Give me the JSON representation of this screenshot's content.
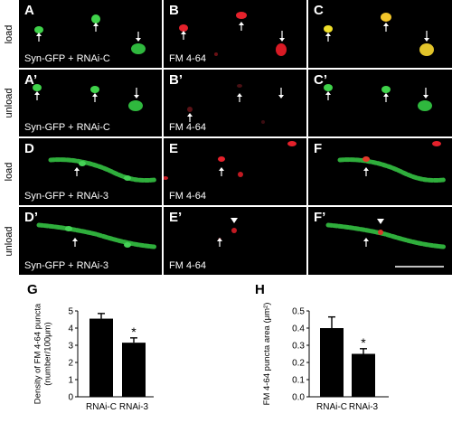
{
  "rows": [
    {
      "label": "load",
      "panels": [
        {
          "letter": "A",
          "caption": "Syn-GFP + RNAi-C",
          "channel": "green"
        },
        {
          "letter": "B",
          "caption": "FM 4-64",
          "channel": "red"
        },
        {
          "letter": "C",
          "caption": "",
          "channel": "merge"
        }
      ]
    },
    {
      "label": "unload",
      "panels": [
        {
          "letter": "A’",
          "caption": "Syn-GFP + RNAi-C",
          "channel": "green"
        },
        {
          "letter": "B’",
          "caption": "FM 4-64",
          "channel": "red-faint"
        },
        {
          "letter": "C’",
          "caption": "",
          "channel": "merge-green"
        }
      ]
    },
    {
      "label": "load",
      "panels": [
        {
          "letter": "D",
          "caption": "Syn-GFP + RNAi-3",
          "channel": "green-axon"
        },
        {
          "letter": "E",
          "caption": "FM 4-64",
          "channel": "red-dots"
        },
        {
          "letter": "F",
          "caption": "",
          "channel": "merge-axon"
        }
      ]
    },
    {
      "label": "unload",
      "panels": [
        {
          "letter": "D’",
          "caption": "Syn-GFP + RNAi-3",
          "channel": "green-axon"
        },
        {
          "letter": "E’",
          "caption": "FM 4-64",
          "channel": "red-dots2"
        },
        {
          "letter": "F’",
          "caption": "",
          "channel": "merge-axon2"
        }
      ]
    }
  ],
  "chart_data": [
    {
      "letter": "G",
      "type": "bar",
      "categories": [
        "RNAi-C",
        "RNAi-3"
      ],
      "values": [
        4.55,
        3.15
      ],
      "errors": [
        0.3,
        0.28
      ],
      "ylabel": "Density of FM 4-64 puncta (number/100μm)",
      "ylabel_lines": [
        "Density of FM 4-64 puncta",
        "(number/100μm)"
      ],
      "ylim": [
        0,
        5
      ],
      "yticks": [
        0,
        1,
        2,
        3,
        4,
        5
      ],
      "significance": [
        "",
        "*"
      ]
    },
    {
      "letter": "H",
      "type": "bar",
      "categories": [
        "RNAi-C",
        "RNAi-3"
      ],
      "values": [
        0.4,
        0.25
      ],
      "errors": [
        0.065,
        0.03
      ],
      "ylabel": "FM 4-64 puncta area (μm²)",
      "ylabel_lines": [
        "FM 4-64 puncta area (μm²)"
      ],
      "ylim": [
        0,
        0.5
      ],
      "yticks": [
        0,
        0.1,
        0.2,
        0.3,
        0.4,
        0.5
      ],
      "significance": [
        "",
        "*"
      ]
    }
  ]
}
